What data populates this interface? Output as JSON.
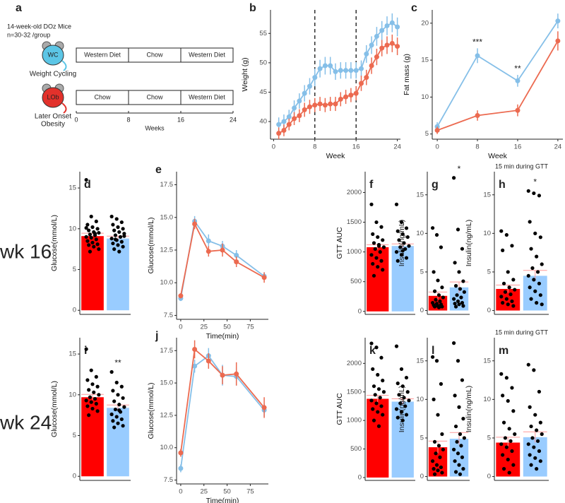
{
  "schematic": {
    "label": "a",
    "lines": [
      "14-week-old DOz Mice",
      "n=30-32 /group"
    ],
    "groups": [
      {
        "icon": "WC",
        "name_lines": [
          "Weight Cycling"
        ],
        "color": "#5cc6e6"
      },
      {
        "icon": "LOb",
        "name_lines": [
          "Later Onset",
          "Obesity"
        ],
        "color": "#e2312b"
      }
    ],
    "timeline": {
      "ticks": [
        0,
        8,
        16,
        24
      ],
      "xlim": [
        0,
        24
      ],
      "xlabel": "Weeks",
      "rows": [
        [
          {
            "start": 0,
            "end": 8,
            "label": "Western Diet"
          },
          {
            "start": 8,
            "end": 16,
            "label": "Chow"
          },
          {
            "start": 16,
            "end": 24,
            "label": "Western Diet"
          }
        ],
        [
          {
            "start": 0,
            "end": 8,
            "label": "Chow"
          },
          {
            "start": 8,
            "end": 16,
            "label": "Chow"
          },
          {
            "start": 16,
            "end": 24,
            "label": "Western Diet"
          }
        ]
      ]
    }
  },
  "rows": [
    "wk 16",
    "wk 24"
  ],
  "chart_data": [
    {
      "type": "line",
      "label": "b",
      "xlabel": "Week",
      "ylabel": "Weight (g)",
      "x": [
        1,
        2,
        3,
        4,
        5,
        6,
        7,
        8,
        9,
        10,
        11,
        12,
        13,
        14,
        15,
        16,
        17,
        18,
        19,
        20,
        21,
        22,
        23,
        24
      ],
      "xlim": [
        -0.6,
        24.6
      ],
      "xticks": [
        0,
        8,
        16,
        24
      ],
      "ylim": [
        37,
        59
      ],
      "yticks": [
        40,
        45,
        50,
        55
      ],
      "vlines": [
        8,
        16
      ],
      "series": [
        {
          "color": "#85bfe8",
          "values": [
            39.5,
            40,
            40.8,
            42.3,
            43.5,
            44.8,
            46,
            47.5,
            49,
            49.5,
            49.5,
            48.5,
            48.7,
            48.7,
            48.7,
            48.7,
            49,
            51.5,
            53,
            54.5,
            55.5,
            56.3,
            56.8,
            56.1
          ],
          "errors": [
            1.2,
            1.2,
            1.2,
            1.3,
            1.3,
            1.4,
            1.4,
            1.5,
            1.5,
            1.5,
            1.5,
            1.4,
            1.4,
            1.4,
            1.4,
            1.4,
            1.4,
            1.5,
            1.5,
            1.6,
            1.6,
            1.6,
            1.6,
            1.6
          ]
        },
        {
          "color": "#ec6a50",
          "values": [
            38,
            38.5,
            39.5,
            40.5,
            41,
            42,
            42.5,
            42.8,
            43,
            42.8,
            43,
            43,
            43.8,
            44.2,
            44.5,
            44.8,
            46.5,
            47.5,
            49.5,
            51,
            52.5,
            53,
            53.3,
            52.8
          ],
          "errors": [
            1,
            1,
            1,
            1.1,
            1.1,
            1.2,
            1.2,
            1.2,
            1.2,
            1.2,
            1.2,
            1.2,
            1.2,
            1.2,
            1.2,
            1.2,
            1.3,
            1.3,
            1.4,
            1.4,
            1.4,
            1.5,
            1.5,
            1.5
          ]
        }
      ]
    },
    {
      "type": "line",
      "label": "c",
      "xlabel": "Week",
      "ylabel": "Fat mass (g)",
      "x": [
        0,
        8,
        16,
        24
      ],
      "xlim": [
        -1,
        25
      ],
      "xticks": [
        0,
        8,
        16,
        24
      ],
      "ylim": [
        4.3,
        21.8
      ],
      "yticks": [
        5,
        10,
        15,
        20
      ],
      "series": [
        {
          "color": "#85bfe8",
          "values": [
            6,
            15.6,
            12.2,
            20.3
          ],
          "errors": [
            0.6,
            1,
            0.8,
            1
          ],
          "annotations": [
            {
              "index": 1,
              "text": "***"
            },
            {
              "index": 2,
              "text": "**"
            }
          ]
        },
        {
          "color": "#ec6a50",
          "values": [
            5.5,
            7.5,
            8.2,
            17.6
          ],
          "errors": [
            0.5,
            0.7,
            0.8,
            1.3
          ]
        }
      ]
    },
    {
      "type": "bar",
      "label": "d",
      "ylabel": "Glucose(mmol/L)",
      "ylim": [
        -0.5,
        17
      ],
      "yticks": [
        0,
        5,
        10,
        15
      ],
      "values": [
        9.1,
        8.8
      ],
      "errors": [
        0.35,
        0.3
      ],
      "colors": [
        "#ff0000",
        "#99ccff"
      ],
      "points": [
        [
          16,
          11.5,
          10.9,
          10.5,
          10.2,
          10,
          9.8,
          9.6,
          9.5,
          9.3,
          9.2,
          9,
          8.9,
          8.7,
          8.5,
          8.3,
          8.1,
          8,
          7.8,
          7.5,
          7.2,
          9.4,
          10.1
        ],
        [
          11.5,
          11.2,
          10.8,
          10.5,
          10.2,
          10,
          9.8,
          9.6,
          9.4,
          9.2,
          9,
          8.8,
          8.6,
          8.4,
          8.2,
          8,
          7.8,
          7.5,
          7.2,
          9.1,
          8.7
        ]
      ]
    },
    {
      "type": "line",
      "label": "e",
      "xlabel": "Time(min)",
      "ylabel": "Glucose(mmol/L)",
      "x": [
        0,
        15,
        30,
        45,
        60,
        90
      ],
      "xlim": [
        -4.5,
        94.5
      ],
      "xticks": [
        0,
        25,
        50,
        75
      ],
      "ylim": [
        7.2,
        18.5
      ],
      "yticks": [
        7.5,
        10.0,
        12.5,
        15.0,
        17.5
      ],
      "series": [
        {
          "color": "#85bfe8",
          "values": [
            8.8,
            14.7,
            13.2,
            12.8,
            12.1,
            10.5
          ],
          "errors": [
            0.2,
            0.4,
            0.5,
            0.4,
            0.4,
            0.3
          ]
        },
        {
          "color": "#ec6a50",
          "values": [
            9,
            14.5,
            12.4,
            12.5,
            11.6,
            10.4
          ],
          "errors": [
            0.2,
            0.4,
            0.4,
            0.5,
            0.4,
            0.4
          ]
        }
      ]
    },
    {
      "type": "bar",
      "label": "f",
      "ylabel": "GTT AUC",
      "ylim": [
        -50,
        2350
      ],
      "yticks": [
        0,
        500,
        1000,
        1500,
        2000
      ],
      "values": [
        1080,
        1100
      ],
      "errors": [
        40,
        35
      ],
      "colors": [
        "#ff0000",
        "#99ccff"
      ],
      "points": [
        [
          1800,
          1500,
          1420,
          1300,
          1250,
          1200,
          1150,
          1100,
          1080,
          1050,
          1000,
          950,
          900,
          850,
          800,
          750,
          700,
          600,
          1120
        ],
        [
          1800,
          1500,
          1400,
          1350,
          1300,
          1250,
          1200,
          1150,
          1100,
          1080,
          1050,
          1000,
          950,
          900,
          850,
          1020
        ]
      ]
    },
    {
      "type": "bar",
      "label": "g",
      "ylabel": "Insulin(ng/mL)",
      "ylim": [
        -0.5,
        18
      ],
      "yticks": [
        0,
        5,
        10,
        15
      ],
      "values": [
        1.9,
        3.0
      ],
      "errors": [
        0.5,
        0.7
      ],
      "colors": [
        "#ff0000",
        "#99ccff"
      ],
      "annotations": [
        {
          "index": 1,
          "text": "*"
        }
      ],
      "points": [
        [
          10.7,
          9.8,
          8.2,
          5,
          3.9,
          3,
          2.5,
          2,
          1.7,
          1.4,
          1.2,
          1,
          0.9,
          0.8,
          0.7,
          0.6,
          0.5,
          0.5,
          0.4
        ],
        [
          17.2,
          10.5,
          8,
          6.2,
          5,
          3.8,
          3.2,
          2.8,
          2.4,
          2,
          1.7,
          1.5,
          1.2,
          1,
          0.9,
          0.8,
          0.6,
          0.5
        ]
      ]
    },
    {
      "type": "bar",
      "label": "h",
      "subtitle": "15 min during GTT",
      "ylabel": "Insulin(ng/mL)",
      "ylim": [
        -0.5,
        18
      ],
      "yticks": [
        0,
        5,
        10,
        15
      ],
      "values": [
        2.8,
        4.5
      ],
      "errors": [
        0.5,
        0.7
      ],
      "colors": [
        "#ff0000",
        "#99ccff"
      ],
      "annotations": [
        {
          "index": 1,
          "text": "*"
        }
      ],
      "points": [
        [
          10.3,
          9.8,
          8.4,
          7.8,
          5,
          4,
          3.5,
          3,
          2.7,
          2.4,
          2.1,
          1.8,
          1.5,
          1.2,
          1,
          0.8,
          0.6
        ],
        [
          15.5,
          15.2,
          14.9,
          11.5,
          10,
          9.5,
          8,
          7,
          6,
          5.5,
          5,
          4.5,
          4,
          3.5,
          3,
          2.5,
          2,
          1.5,
          1,
          0.8
        ]
      ]
    },
    {
      "type": "bar",
      "label": "i",
      "ylabel": "Glucose(mmol/L)",
      "ylim": [
        -0.5,
        17
      ],
      "yticks": [
        0,
        5,
        10,
        15
      ],
      "values": [
        9.7,
        8.4
      ],
      "errors": [
        0.35,
        0.35
      ],
      "colors": [
        "#ff0000",
        "#99ccff"
      ],
      "annotations": [
        {
          "index": 1,
          "text": "**"
        }
      ],
      "points": [
        [
          15.6,
          13,
          12.2,
          11.8,
          11.3,
          11,
          10.6,
          10.3,
          10,
          9.7,
          9.5,
          9.3,
          9.1,
          8.9,
          8.6,
          8.3,
          8,
          7.5
        ],
        [
          12.8,
          11.5,
          11,
          10.5,
          10,
          9.6,
          9.2,
          8.8,
          8.5,
          8.2,
          7.9,
          7.6,
          7.3,
          7,
          6.8,
          6.5,
          6.2,
          6,
          8.1
        ]
      ]
    },
    {
      "type": "line",
      "label": "j",
      "xlabel": "Time(min)",
      "ylabel": "Glucose(mmol/L)",
      "x": [
        0,
        15,
        30,
        45,
        60,
        90
      ],
      "xlim": [
        -4.5,
        94.5
      ],
      "xticks": [
        0,
        25,
        50,
        75
      ],
      "ylim": [
        7.2,
        18.5
      ],
      "yticks": [
        7.5,
        10.0,
        12.5,
        15.0,
        17.5
      ],
      "series": [
        {
          "color": "#85bfe8",
          "values": [
            8.4,
            16.3,
            17.1,
            15.6,
            15.5,
            12.9
          ],
          "errors": [
            0.3,
            0.5,
            0.6,
            0.8,
            0.7,
            0.5
          ]
        },
        {
          "color": "#ec6a50",
          "values": [
            9.6,
            17.6,
            16.7,
            15.6,
            15.7,
            13.1
          ],
          "errors": [
            0.3,
            0.7,
            0.6,
            0.7,
            0.9,
            0.8
          ]
        }
      ]
    },
    {
      "type": "bar",
      "label": "k",
      "ylabel": "GTT AUC",
      "ylim": [
        -50,
        2450
      ],
      "yticks": [
        0,
        500,
        1000,
        1500,
        2000
      ],
      "values": [
        1380,
        1330
      ],
      "errors": [
        60,
        50
      ],
      "colors": [
        "#ff0000",
        "#99ccff"
      ],
      "points": [
        [
          2350,
          2280,
          2100,
          1900,
          1800,
          1700,
          1600,
          1550,
          1500,
          1450,
          1400,
          1350,
          1300,
          1250,
          1200,
          1150,
          1100,
          1000,
          900
        ],
        [
          2300,
          1900,
          1750,
          1650,
          1600,
          1500,
          1450,
          1400,
          1350,
          1300,
          1250,
          1200,
          1150,
          1100,
          1050,
          1000
        ]
      ]
    },
    {
      "type": "bar",
      "label": "l",
      "ylabel": "Insulin(ng/mL)",
      "ylim": [
        -0.5,
        18
      ],
      "yticks": [
        0,
        5,
        10,
        15
      ],
      "values": [
        3.8,
        4.9
      ],
      "errors": [
        0.8,
        0.8
      ],
      "colors": [
        "#ff0000",
        "#99ccff"
      ],
      "points": [
        [
          15.5,
          15,
          12,
          10,
          8,
          5.5,
          4.5,
          4,
          3.5,
          3,
          2.5,
          2,
          1.5,
          1.2,
          1,
          0.8,
          0.5,
          0.3
        ],
        [
          17.3,
          15,
          12.5,
          10.5,
          9,
          7.5,
          6.5,
          5.5,
          5,
          4.5,
          4,
          3.5,
          3,
          2.5,
          2,
          1.5,
          1,
          0.6,
          0.3
        ]
      ]
    },
    {
      "type": "bar",
      "label": "m",
      "subtitle": "15 min during GTT",
      "ylabel": "Insulin(ng/mL)",
      "ylim": [
        -0.5,
        18
      ],
      "yticks": [
        0,
        5,
        10,
        15
      ],
      "values": [
        4.4,
        5.1
      ],
      "errors": [
        0.7,
        0.7
      ],
      "colors": [
        "#ff0000",
        "#99ccff"
      ],
      "points": [
        [
          13.3,
          12.8,
          11.5,
          10.5,
          9.8,
          8.5,
          7,
          6.2,
          5.5,
          5,
          4.6,
          4.2,
          3.8,
          3.3,
          2.8,
          2.2,
          1.5,
          1,
          0.5
        ],
        [
          14.5,
          13.8,
          11,
          9,
          8,
          7,
          6.5,
          6,
          5.5,
          5,
          4.6,
          4.2,
          3.8,
          3.3,
          2.8,
          2.4,
          2,
          1.5,
          1
        ]
      ]
    }
  ]
}
